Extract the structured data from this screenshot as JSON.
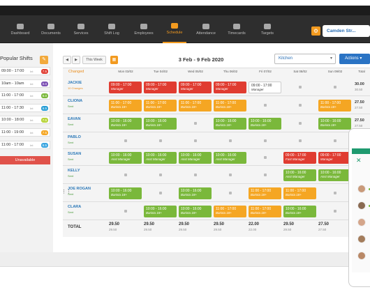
{
  "nav": {
    "items": [
      {
        "label": "Dashboard",
        "icon": "dashboard-icon"
      },
      {
        "label": "Documents",
        "icon": "documents-icon"
      },
      {
        "label": "Services",
        "icon": "services-icon"
      },
      {
        "label": "Shift Log",
        "icon": "shift-log-icon"
      },
      {
        "label": "Employees",
        "icon": "employees-icon"
      },
      {
        "label": "Schedule",
        "icon": "schedule-icon"
      },
      {
        "label": "Attendance",
        "icon": "attendance-icon"
      },
      {
        "label": "Timecards",
        "icon": "timecards-icon"
      },
      {
        "label": "Targets",
        "icon": "targets-icon"
      }
    ],
    "active": "Schedule",
    "location": "Camden Str..."
  },
  "popular": {
    "title": "Popular Shifts",
    "shifts": [
      {
        "time": "09:00 - 17:00",
        "label": "Int",
        "count": "7.5",
        "color": "#e03c31"
      },
      {
        "time": "10am - 10am",
        "label": "Int",
        "count": "0.0",
        "color": "#7b4fb3"
      },
      {
        "time": "11:00 - 17:00",
        "label": "Int",
        "count": "6.0",
        "color": "#7ab83b"
      },
      {
        "time": "11:00 - 17:30",
        "label": "Int",
        "count": "6.5",
        "color": "#2a9fd6"
      },
      {
        "time": "10:00 - 18:00",
        "label": "Int",
        "count": "7.5",
        "color": "#b7d43a"
      },
      {
        "time": "11:00 - 19:00",
        "label": "Int",
        "count": "7.5",
        "color": "#f5a623"
      },
      {
        "time": "11:00 - 17:00",
        "label": "Int",
        "count": "6.5",
        "color": "#3aa5e0"
      }
    ],
    "unavailable": "Unavailable"
  },
  "toolbar": {
    "prev": "◀",
    "next": "▶",
    "this_week": "This Week",
    "date_range": "3 Feb - 9 Feb 2020",
    "department": "Kitchen",
    "actions": "Actions ▾"
  },
  "headers": {
    "changed": "Changed",
    "days": [
      "Mon 03/02",
      "Tue 04/02",
      "Wed 05/02",
      "Thu 06/02",
      "Fri 07/02",
      "Sat 08/02",
      "Sun 09/02"
    ],
    "total": "Total"
  },
  "employees": [
    {
      "name": "JACKIE",
      "status": "10 Changes",
      "status_type": "orange",
      "total": "30.00",
      "total_sub": "30.50"
    },
    {
      "name": "CLIONA",
      "status": "Sent",
      "status_type": "green",
      "total": "27.50",
      "total_sub": "27.50"
    },
    {
      "name": "EAVAN",
      "status": "Sent",
      "status_type": "green",
      "total": "27.50",
      "total_sub": "27.50"
    },
    {
      "name": "PABLO",
      "status": "Sent",
      "status_type": "green",
      "total": "",
      "total_sub": ""
    },
    {
      "name": "SUSAN",
      "status": "Sent",
      "status_type": "green",
      "total": "",
      "total_sub": ""
    },
    {
      "name": "KELLY",
      "status": "Sent",
      "status_type": "green",
      "total": "",
      "total_sub": ""
    },
    {
      "name": "JOE ROGAN",
      "status": "Sent",
      "status_type": "green",
      "total": "",
      "total_sub": ""
    },
    {
      "name": "CLARA",
      "status": "Sent",
      "status_type": "green",
      "total": "",
      "total_sub": ""
    }
  ],
  "shifts": [
    {
      "row": 0,
      "day": 0,
      "time": "09:00 - 17:00",
      "role": "Manager",
      "color": "red"
    },
    {
      "row": 0,
      "day": 1,
      "time": "09:00 - 17:00",
      "role": "Manager",
      "color": "red"
    },
    {
      "row": 0,
      "day": 2,
      "time": "09:00 - 17:00",
      "role": "Manager",
      "color": "red"
    },
    {
      "row": 0,
      "day": 3,
      "time": "09:00 - 17:00",
      "role": "Manager",
      "color": "red"
    },
    {
      "row": 0,
      "day": 4,
      "time": "09:00 - 17:00",
      "role": "Manager",
      "color": "white"
    },
    {
      "row": 1,
      "day": 0,
      "time": "11:00 - 17:00",
      "role": "Barista 18+",
      "color": "orange"
    },
    {
      "row": 1,
      "day": 1,
      "time": "11:00 - 17:00",
      "role": "Barista 18+",
      "color": "orange"
    },
    {
      "row": 1,
      "day": 2,
      "time": "11:00 - 17:00",
      "role": "Barista 18+",
      "color": "orange"
    },
    {
      "row": 1,
      "day": 3,
      "time": "11:00 - 17:00",
      "role": "Barista 18+",
      "color": "orange"
    },
    {
      "row": 1,
      "day": 6,
      "time": "11:00 - 17:00",
      "role": "Barista 18+",
      "color": "orange"
    },
    {
      "row": 2,
      "day": 0,
      "time": "10:00 - 16:00",
      "role": "Barista 18+",
      "color": "green"
    },
    {
      "row": 2,
      "day": 1,
      "time": "10:00 - 16:00",
      "role": "Barista 18+",
      "color": "green"
    },
    {
      "row": 2,
      "day": 3,
      "time": "10:00 - 16:00",
      "role": "Barista 18+",
      "color": "green"
    },
    {
      "row": 2,
      "day": 4,
      "time": "10:00 - 16:00",
      "role": "Barista 18+",
      "color": "green"
    },
    {
      "row": 2,
      "day": 6,
      "time": "10:00 - 16:00",
      "role": "Barista 18+",
      "color": "green"
    },
    {
      "row": 4,
      "day": 0,
      "time": "10:00 - 16:00",
      "role": "Asst Manager",
      "color": "green"
    },
    {
      "row": 4,
      "day": 1,
      "time": "10:00 - 16:00",
      "role": "Asst Manager",
      "color": "green"
    },
    {
      "row": 4,
      "day": 2,
      "time": "10:00 - 16:00",
      "role": "Asst Manager",
      "color": "green"
    },
    {
      "row": 4,
      "day": 3,
      "time": "10:00 - 16:00",
      "role": "Asst Manager",
      "color": "green"
    },
    {
      "row": 4,
      "day": 5,
      "time": "09:00 - 17:00",
      "role": "Fast Manager",
      "color": "red"
    },
    {
      "row": 4,
      "day": 6,
      "time": "09:00 - 17:00",
      "role": "Manager",
      "color": "red"
    },
    {
      "row": 5,
      "day": 5,
      "time": "10:00 - 16:00",
      "role": "Asst Manager",
      "color": "green"
    },
    {
      "row": 5,
      "day": 6,
      "time": "10:00 - 16:00",
      "role": "Asst Manager",
      "color": "green"
    },
    {
      "row": 6,
      "day": 0,
      "time": "10:00 - 16:00",
      "role": "Barista 18+",
      "color": "green"
    },
    {
      "row": 6,
      "day": 2,
      "time": "10:00 - 16:00",
      "role": "Barista 18+",
      "color": "green"
    },
    {
      "row": 6,
      "day": 4,
      "time": "11:00 - 17:00",
      "role": "Barista 18+",
      "color": "orange"
    },
    {
      "row": 6,
      "day": 5,
      "time": "11:00 - 17:00",
      "role": "Barista 18+",
      "color": "orange"
    },
    {
      "row": 7,
      "day": 1,
      "time": "10:00 - 16:00",
      "role": "Barista 18+",
      "color": "green"
    },
    {
      "row": 7,
      "day": 2,
      "time": "10:00 - 16:00",
      "role": "Barista 18+",
      "color": "green"
    },
    {
      "row": 7,
      "day": 3,
      "time": "11:00 - 17:00",
      "role": "Barista 18+",
      "color": "orange"
    },
    {
      "row": 7,
      "day": 4,
      "time": "11:00 - 17:00",
      "role": "Barista 18+",
      "color": "orange"
    },
    {
      "row": 7,
      "day": 5,
      "time": "10:00 - 16:00",
      "role": "Barista 18+",
      "color": "green"
    }
  ],
  "totals": {
    "label": "TOTAL",
    "values": [
      {
        "main": "29.50",
        "sub": "29.50"
      },
      {
        "main": "29.50",
        "sub": "29.50"
      },
      {
        "main": "29.50",
        "sub": "29.50"
      },
      {
        "main": "29.50",
        "sub": "29.50"
      },
      {
        "main": "22.00",
        "sub": "22.00"
      },
      {
        "main": "29.50",
        "sub": "29.50"
      },
      {
        "main": "27.50",
        "sub": "27.50"
      }
    ]
  },
  "colors": {
    "accent": "#f29a1f",
    "link": "#2a73c4"
  }
}
